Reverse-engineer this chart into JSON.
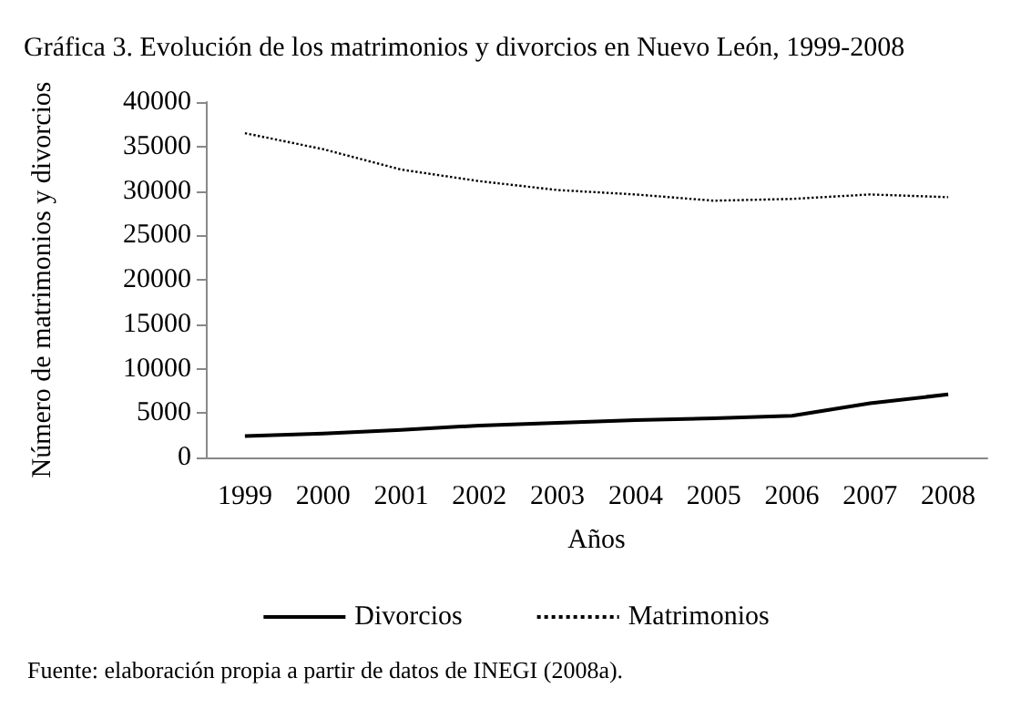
{
  "chart_data": {
    "type": "line",
    "title": "Gráfica 3. Evolución de los matrimonios y divorcios en Nuevo León, 1999-2008",
    "xlabel": "Años",
    "ylabel": "Número de matrimonios y divorcios",
    "categories": [
      "1999",
      "2000",
      "2001",
      "2002",
      "2003",
      "2004",
      "2005",
      "2006",
      "2007",
      "2008"
    ],
    "series": [
      {
        "name": "Divorcios",
        "color": "#000000",
        "line_style": "solid",
        "values": [
          2400,
          2700,
          3100,
          3600,
          3900,
          4200,
          4400,
          4700,
          6100,
          7100
        ]
      },
      {
        "name": "Matrimonios",
        "color": "#000000",
        "line_style": "dotted",
        "values": [
          36500,
          34700,
          32400,
          31100,
          30100,
          29600,
          28900,
          29100,
          29600,
          29300
        ]
      }
    ],
    "ylim": [
      0,
      40000
    ],
    "yticks": [
      0,
      5000,
      10000,
      15000,
      20000,
      25000,
      30000,
      35000,
      40000
    ],
    "grid": false,
    "legend": "bottom",
    "marker": "none",
    "annotations": [
      "Fuente: elaboración propia a partir de datos de INEGI (2008a)."
    ]
  }
}
